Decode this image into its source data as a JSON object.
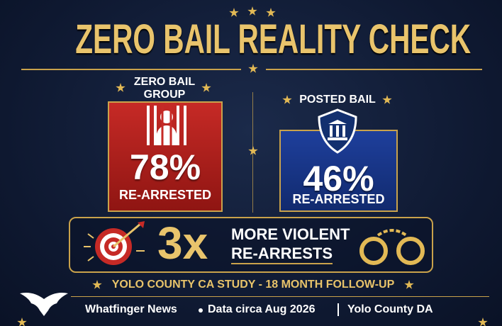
{
  "header": {
    "title": "ZERO BAIL REALITY CHECK"
  },
  "panels": [
    {
      "heading": "ZERO BAIL GROUP",
      "value": "78%",
      "label": "RE-ARRESTED"
    },
    {
      "heading": "POSTED BAIL",
      "value": "46%",
      "label": "RE-ARRESTED"
    }
  ],
  "callout": {
    "value": "3x",
    "line1": "MORE VIOLENT",
    "line2": "RE-ARRESTS"
  },
  "study": "YOLO COUNTY CA STUDY - 18 MONTH FOLLOW-UP",
  "footer": {
    "items": [
      "Whatfinger News",
      "Data circa Aug 2026",
      "Yolo County DA"
    ]
  }
}
